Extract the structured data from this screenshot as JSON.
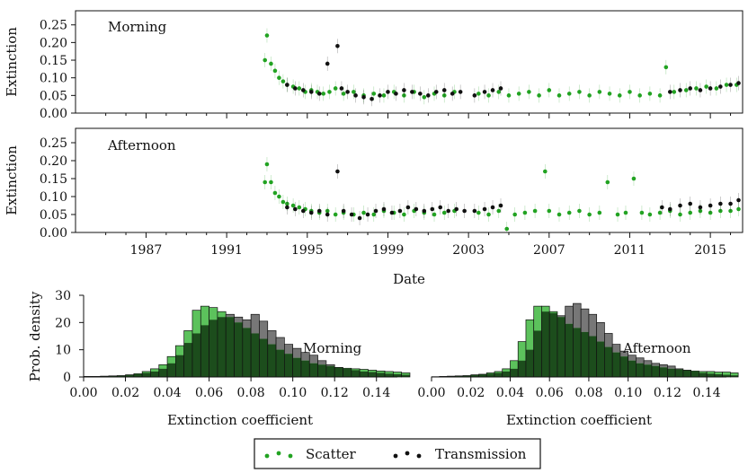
{
  "chart_data": [
    {
      "id": "morning-timeseries",
      "type": "scatter",
      "panel_label": "Morning",
      "ylabel": "Extinction",
      "ylim": [
        0,
        0.29
      ],
      "yticks": [
        "0.00",
        "0.05",
        "0.10",
        "0.15",
        "0.20",
        "0.25"
      ],
      "xlim": [
        1983.5,
        2016.6
      ],
      "series": [
        {
          "name": "Scatter",
          "color": "#22a322",
          "points": [
            [
              1992.9,
              0.15
            ],
            [
              1993.0,
              0.22
            ],
            [
              1993.2,
              0.14
            ],
            [
              1993.4,
              0.12
            ],
            [
              1993.6,
              0.1
            ],
            [
              1993.8,
              0.09
            ],
            [
              1994.0,
              0.08
            ],
            [
              1994.3,
              0.075
            ],
            [
              1994.6,
              0.07
            ],
            [
              1994.9,
              0.06
            ],
            [
              1995.2,
              0.065
            ],
            [
              1995.5,
              0.06
            ],
            [
              1995.8,
              0.055
            ],
            [
              1996.1,
              0.06
            ],
            [
              1996.4,
              0.07
            ],
            [
              1996.8,
              0.055
            ],
            [
              1997.3,
              0.06
            ],
            [
              1997.8,
              0.05
            ],
            [
              1998.3,
              0.055
            ],
            [
              1998.8,
              0.05
            ],
            [
              1999.3,
              0.06
            ],
            [
              1999.8,
              0.05
            ],
            [
              2000.3,
              0.06
            ],
            [
              2000.8,
              0.045
            ],
            [
              2001.3,
              0.055
            ],
            [
              2001.8,
              0.05
            ],
            [
              2002.3,
              0.06
            ],
            [
              2003.5,
              0.055
            ],
            [
              2004.0,
              0.05
            ],
            [
              2004.5,
              0.06
            ],
            [
              2005.0,
              0.05
            ],
            [
              2005.5,
              0.055
            ],
            [
              2006.0,
              0.06
            ],
            [
              2006.5,
              0.05
            ],
            [
              2007.0,
              0.065
            ],
            [
              2007.5,
              0.05
            ],
            [
              2008.0,
              0.055
            ],
            [
              2008.5,
              0.06
            ],
            [
              2009.0,
              0.05
            ],
            [
              2009.5,
              0.06
            ],
            [
              2010.0,
              0.055
            ],
            [
              2010.5,
              0.05
            ],
            [
              2011.0,
              0.06
            ],
            [
              2011.5,
              0.05
            ],
            [
              2012.0,
              0.055
            ],
            [
              2012.5,
              0.05
            ],
            [
              2012.8,
              0.13
            ],
            [
              2013.2,
              0.06
            ],
            [
              2013.8,
              0.065
            ],
            [
              2014.3,
              0.07
            ],
            [
              2014.8,
              0.075
            ],
            [
              2015.3,
              0.07
            ],
            [
              2015.8,
              0.08
            ],
            [
              2016.3,
              0.08
            ]
          ]
        },
        {
          "name": "Transmission",
          "color": "#111111",
          "points": [
            [
              1994.0,
              0.08
            ],
            [
              1994.4,
              0.07
            ],
            [
              1994.8,
              0.065
            ],
            [
              1995.2,
              0.06
            ],
            [
              1995.6,
              0.055
            ],
            [
              1996.0,
              0.14
            ],
            [
              1996.5,
              0.19
            ],
            [
              1996.7,
              0.07
            ],
            [
              1997.0,
              0.06
            ],
            [
              1997.4,
              0.05
            ],
            [
              1997.8,
              0.045
            ],
            [
              1998.2,
              0.04
            ],
            [
              1998.6,
              0.05
            ],
            [
              1999.0,
              0.06
            ],
            [
              1999.4,
              0.055
            ],
            [
              1999.8,
              0.065
            ],
            [
              2000.2,
              0.06
            ],
            [
              2000.6,
              0.055
            ],
            [
              2001.0,
              0.05
            ],
            [
              2001.4,
              0.06
            ],
            [
              2001.8,
              0.065
            ],
            [
              2002.2,
              0.055
            ],
            [
              2002.6,
              0.06
            ],
            [
              2003.3,
              0.05
            ],
            [
              2003.8,
              0.06
            ],
            [
              2004.2,
              0.065
            ],
            [
              2004.6,
              0.07
            ],
            [
              2013.0,
              0.06
            ],
            [
              2013.5,
              0.065
            ],
            [
              2014.0,
              0.07
            ],
            [
              2014.5,
              0.065
            ],
            [
              2015.0,
              0.07
            ],
            [
              2015.5,
              0.075
            ],
            [
              2016.0,
              0.08
            ],
            [
              2016.4,
              0.085
            ]
          ]
        }
      ]
    },
    {
      "id": "afternoon-timeseries",
      "type": "scatter",
      "panel_label": "Afternoon",
      "ylabel": "Extinction",
      "xlabel": "Date",
      "ylim": [
        0,
        0.29
      ],
      "yticks": [
        "0.00",
        "0.05",
        "0.10",
        "0.15",
        "0.20",
        "0.25"
      ],
      "xlim": [
        1983.5,
        2016.6
      ],
      "xticks": [
        "1987",
        "1991",
        "1995",
        "1999",
        "2003",
        "2007",
        "2011",
        "2015"
      ],
      "series": [
        {
          "name": "Scatter",
          "color": "#22a322",
          "points": [
            [
              1992.9,
              0.14
            ],
            [
              1993.0,
              0.19
            ],
            [
              1993.2,
              0.14
            ],
            [
              1993.4,
              0.11
            ],
            [
              1993.6,
              0.1
            ],
            [
              1993.8,
              0.085
            ],
            [
              1994.0,
              0.08
            ],
            [
              1994.3,
              0.075
            ],
            [
              1994.6,
              0.07
            ],
            [
              1994.9,
              0.065
            ],
            [
              1995.2,
              0.06
            ],
            [
              1995.6,
              0.055
            ],
            [
              1996.0,
              0.06
            ],
            [
              1996.4,
              0.05
            ],
            [
              1996.8,
              0.055
            ],
            [
              1997.3,
              0.05
            ],
            [
              1997.8,
              0.055
            ],
            [
              1998.3,
              0.05
            ],
            [
              1998.8,
              0.06
            ],
            [
              1999.3,
              0.055
            ],
            [
              1999.8,
              0.05
            ],
            [
              2000.3,
              0.06
            ],
            [
              2000.8,
              0.055
            ],
            [
              2001.3,
              0.05
            ],
            [
              2001.8,
              0.055
            ],
            [
              2002.3,
              0.06
            ],
            [
              2003.5,
              0.055
            ],
            [
              2004.0,
              0.05
            ],
            [
              2004.5,
              0.06
            ],
            [
              2004.9,
              0.01
            ],
            [
              2005.3,
              0.05
            ],
            [
              2005.8,
              0.055
            ],
            [
              2006.3,
              0.06
            ],
            [
              2006.8,
              0.17
            ],
            [
              2007.0,
              0.06
            ],
            [
              2007.5,
              0.05
            ],
            [
              2008.0,
              0.055
            ],
            [
              2008.5,
              0.06
            ],
            [
              2009.0,
              0.05
            ],
            [
              2009.5,
              0.055
            ],
            [
              2009.9,
              0.14
            ],
            [
              2010.4,
              0.05
            ],
            [
              2010.8,
              0.055
            ],
            [
              2011.2,
              0.15
            ],
            [
              2011.6,
              0.055
            ],
            [
              2012.0,
              0.05
            ],
            [
              2012.5,
              0.055
            ],
            [
              2013.0,
              0.06
            ],
            [
              2013.5,
              0.05
            ],
            [
              2014.0,
              0.055
            ],
            [
              2014.5,
              0.06
            ],
            [
              2015.0,
              0.055
            ],
            [
              2015.5,
              0.06
            ],
            [
              2016.0,
              0.06
            ],
            [
              2016.4,
              0.065
            ]
          ]
        },
        {
          "name": "Transmission",
          "color": "#111111",
          "points": [
            [
              1994.0,
              0.07
            ],
            [
              1994.4,
              0.065
            ],
            [
              1994.8,
              0.06
            ],
            [
              1995.2,
              0.055
            ],
            [
              1995.6,
              0.06
            ],
            [
              1996.0,
              0.05
            ],
            [
              1996.5,
              0.17
            ],
            [
              1996.8,
              0.06
            ],
            [
              1997.2,
              0.05
            ],
            [
              1997.6,
              0.04
            ],
            [
              1998.0,
              0.05
            ],
            [
              1998.4,
              0.06
            ],
            [
              1998.8,
              0.065
            ],
            [
              1999.2,
              0.055
            ],
            [
              1999.6,
              0.06
            ],
            [
              2000.0,
              0.07
            ],
            [
              2000.4,
              0.065
            ],
            [
              2000.8,
              0.06
            ],
            [
              2001.2,
              0.065
            ],
            [
              2001.6,
              0.07
            ],
            [
              2002.0,
              0.06
            ],
            [
              2002.4,
              0.065
            ],
            [
              2002.8,
              0.06
            ],
            [
              2003.3,
              0.06
            ],
            [
              2003.8,
              0.065
            ],
            [
              2004.2,
              0.07
            ],
            [
              2004.6,
              0.075
            ],
            [
              2012.6,
              0.07
            ],
            [
              2013.0,
              0.065
            ],
            [
              2013.5,
              0.075
            ],
            [
              2014.0,
              0.08
            ],
            [
              2014.5,
              0.07
            ],
            [
              2015.0,
              0.075
            ],
            [
              2015.5,
              0.08
            ],
            [
              2016.0,
              0.08
            ],
            [
              2016.4,
              0.09
            ]
          ]
        }
      ]
    },
    {
      "id": "morning-histogram",
      "type": "bar",
      "panel_label": "Morning",
      "ylabel": "Prob. density",
      "xlabel": "Extinction coefficient",
      "xlim": [
        0,
        0.15
      ],
      "ylim": [
        0,
        30
      ],
      "bin_width": 0.004,
      "xticks": [
        "0.00",
        "0.02",
        "0.04",
        "0.06",
        "0.08",
        "0.10",
        "0.12",
        "0.14"
      ],
      "yticks": [
        "0",
        "10",
        "20",
        "30"
      ],
      "series": [
        {
          "name": "Scatter",
          "color": "#5cc25c",
          "values": [
            0.2,
            0.2,
            0.3,
            0.4,
            0.5,
            0.8,
            1.2,
            2.0,
            3.0,
            4.5,
            7.5,
            11.5,
            17.0,
            24.5,
            26.0,
            25.5,
            24.0,
            22.0,
            20.0,
            18.0,
            16.0,
            14.0,
            12.0,
            10.0,
            8.5,
            7.0,
            6.0,
            5.0,
            4.5,
            4.0,
            3.5,
            3.2,
            3.0,
            2.8,
            2.5,
            2.2,
            2.0,
            1.8,
            1.5
          ]
        },
        {
          "name": "Transmission",
          "color": "#777777",
          "values": [
            0.2,
            0.2,
            0.3,
            0.4,
            0.5,
            0.8,
            1.0,
            1.5,
            2.0,
            3.0,
            5.0,
            8.0,
            12.5,
            16.0,
            19.0,
            21.0,
            22.0,
            23.0,
            22.0,
            21.0,
            23.0,
            20.5,
            17.0,
            14.5,
            12.0,
            10.5,
            9.0,
            8.0,
            6.0,
            4.5,
            3.5,
            3.0,
            2.5,
            2.0,
            1.8,
            1.5,
            1.2,
            1.0,
            0.8
          ]
        }
      ]
    },
    {
      "id": "afternoon-histogram",
      "type": "bar",
      "panel_label": "Afternoon",
      "xlabel": "Extinction coefficient",
      "xlim": [
        0,
        0.15
      ],
      "ylim": [
        0,
        30
      ],
      "bin_width": 0.004,
      "xticks": [
        "0.00",
        "0.02",
        "0.04",
        "0.06",
        "0.08",
        "0.10",
        "0.12",
        "0.14"
      ],
      "series": [
        {
          "name": "Scatter",
          "color": "#5cc25c",
          "values": [
            0.1,
            0.2,
            0.3,
            0.4,
            0.5,
            0.8,
            1.0,
            1.5,
            2.0,
            3.0,
            6.0,
            13.0,
            21.0,
            26.0,
            26.0,
            24.0,
            22.0,
            19.5,
            18.0,
            16.5,
            15.0,
            13.0,
            11.0,
            9.0,
            7.5,
            6.0,
            5.0,
            4.5,
            4.0,
            3.5,
            3.0,
            2.8,
            2.5,
            2.2,
            2.0,
            2.0,
            1.8,
            1.8,
            1.5
          ]
        },
        {
          "name": "Transmission",
          "color": "#777777",
          "values": [
            0.1,
            0.2,
            0.3,
            0.4,
            0.5,
            0.8,
            1.0,
            1.2,
            1.5,
            2.0,
            3.0,
            6.0,
            10.0,
            17.0,
            24.0,
            23.5,
            22.5,
            26.0,
            27.0,
            25.0,
            23.0,
            20.0,
            16.0,
            12.0,
            9.5,
            8.0,
            7.0,
            6.0,
            5.0,
            4.5,
            4.0,
            3.0,
            2.5,
            2.0,
            1.5,
            1.2,
            1.0,
            0.8,
            0.6
          ]
        }
      ]
    }
  ],
  "legend": {
    "placement": "bottom-center",
    "items": [
      {
        "label": "Scatter",
        "color": "#22a322"
      },
      {
        "label": "Transmission",
        "color": "#111111"
      }
    ]
  }
}
